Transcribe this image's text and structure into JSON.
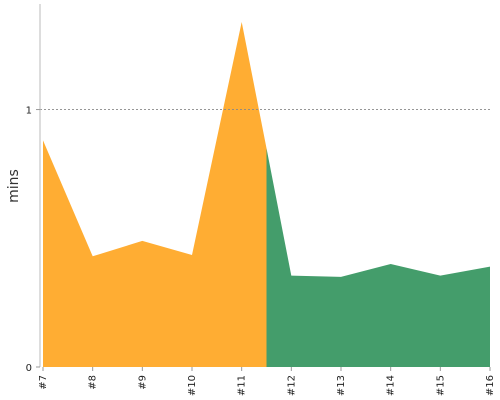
{
  "chart_data": {
    "type": "area",
    "ylabel": "mins",
    "categories": [
      "#7",
      "#8",
      "#9",
      "#10",
      "#11",
      "#12",
      "#13",
      "#14",
      "#15",
      "#16"
    ],
    "series": [
      {
        "values": [
          0.88,
          0.43,
          0.49,
          0.435,
          1.34,
          null,
          null,
          null,
          null,
          null
        ],
        "color": "#FFAD33"
      },
      {
        "values": [
          null,
          null,
          null,
          null,
          null,
          0.355,
          0.35,
          0.4,
          0.355,
          0.39
        ],
        "color": "#449D6B"
      }
    ],
    "split": {
      "after_index": 4.5,
      "value_at_split": 0.85
    },
    "yticks": [
      0,
      1
    ],
    "ylim": [
      0,
      1.41
    ],
    "reference_line": {
      "y": 1,
      "style": "dotted",
      "color": "#888888"
    }
  }
}
